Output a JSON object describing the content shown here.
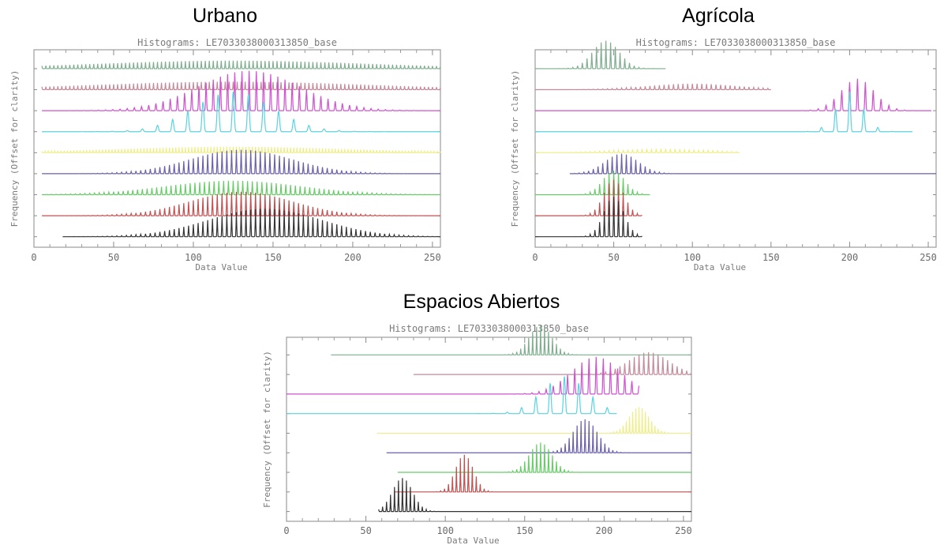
{
  "panels": [
    {
      "heading": "Urbano",
      "plot_title": "Histograms: LE7033038000313850_base",
      "xlabel": "Data Value",
      "ylabel": "Frequency (Offset for clarity)",
      "xticks": [
        "0",
        "50",
        "100",
        "150",
        "200",
        "250"
      ],
      "xlim": [
        0,
        255
      ]
    },
    {
      "heading": "Agrícola",
      "plot_title": "Histograms: LE7033038000313850_base",
      "xlabel": "Data Value",
      "ylabel": "Frequency (Offset for clarity)",
      "xticks": [
        "0",
        "50",
        "100",
        "150",
        "200",
        "250"
      ],
      "xlim": [
        0,
        255
      ]
    },
    {
      "heading": "Espacios Abiertos",
      "plot_title": "Histograms: LE7033038000313850_base",
      "xlabel": "Data Value",
      "ylabel": "Frequency (Offset for clarity)",
      "xticks": [
        "0",
        "50",
        "100",
        "150",
        "200",
        "250"
      ],
      "xlim": [
        0,
        255
      ]
    }
  ],
  "chart_data": [
    {
      "type": "line",
      "title": "Histograms: LE7033038000313850_base",
      "xlabel": "Data Value",
      "ylabel": "Frequency (Offset for clarity)",
      "xlim": [
        0,
        255
      ],
      "grid": false,
      "series": [
        {
          "color": "#7fae8f",
          "x_range": [
            5,
            255
          ],
          "peak_at": 125,
          "amplitude": 0.2,
          "spacing": 2.5,
          "spread": 120
        },
        {
          "color": "#c48a9a",
          "x_range": [
            5,
            255
          ],
          "peak_at": 125,
          "amplitude": 0.2,
          "spacing": 2.5,
          "spread": 120
        },
        {
          "color": "#cf52cf",
          "x_range": [
            5,
            255
          ],
          "peak_at": 135,
          "amplitude": 1.0,
          "spacing": 4.5,
          "spread": 45
        },
        {
          "color": "#5ad3e0",
          "x_range": [
            5,
            255
          ],
          "peak_at": 125,
          "amplitude": 1.0,
          "spacing": 9.5,
          "spread": 35
        },
        {
          "color": "#eeee88",
          "x_range": [
            5,
            255
          ],
          "peak_at": 125,
          "amplitude": 0.15,
          "spacing": 2.0,
          "spread": 100
        },
        {
          "color": "#6a60aa",
          "x_range": [
            5,
            255
          ],
          "peak_at": 130,
          "amplitude": 0.6,
          "spacing": 3.0,
          "spread": 45
        },
        {
          "color": "#66cc66",
          "x_range": [
            5,
            255
          ],
          "peak_at": 125,
          "amplitude": 0.35,
          "spacing": 3.0,
          "spread": 60
        },
        {
          "color": "#c05050",
          "x_range": [
            5,
            255
          ],
          "peak_at": 130,
          "amplitude": 0.6,
          "spacing": 3.0,
          "spread": 45
        },
        {
          "color": "#333333",
          "x_range": [
            18,
            255
          ],
          "peak_at": 145,
          "amplitude": 0.7,
          "spacing": 3.0,
          "spread": 50
        }
      ]
    },
    {
      "type": "line",
      "title": "Histograms: LE7033038000313850_base",
      "xlabel": "Data Value",
      "ylabel": "Frequency (Offset for clarity)",
      "xlim": [
        0,
        255
      ],
      "grid": false,
      "series": [
        {
          "color": "#7fae8f",
          "x_range": [
            0,
            83
          ],
          "peak_at": 45,
          "amplitude": 0.7,
          "spacing": 3.0,
          "spread": 12
        },
        {
          "color": "#c48a9a",
          "x_range": [
            0,
            150
          ],
          "peak_at": 100,
          "amplitude": 0.15,
          "spacing": 3.0,
          "spread": 40
        },
        {
          "color": "#cf52cf",
          "x_range": [
            0,
            252
          ],
          "peak_at": 205,
          "amplitude": 0.8,
          "spacing": 5.0,
          "spread": 15
        },
        {
          "color": "#5ad3e0",
          "x_range": [
            0,
            240
          ],
          "peak_at": 200,
          "amplitude": 1.0,
          "spacing": 9.0,
          "spread": 12
        },
        {
          "color": "#eeee88",
          "x_range": [
            0,
            130
          ],
          "peak_at": 80,
          "amplitude": 0.1,
          "spacing": 3.0,
          "spread": 40
        },
        {
          "color": "#6a60aa",
          "x_range": [
            22,
            255
          ],
          "peak_at": 55,
          "amplitude": 0.5,
          "spacing": 3.0,
          "spread": 15
        },
        {
          "color": "#66cc66",
          "x_range": [
            0,
            73
          ],
          "peak_at": 50,
          "amplitude": 0.6,
          "spacing": 3.0,
          "spread": 10
        },
        {
          "color": "#c05050",
          "x_range": [
            0,
            68
          ],
          "peak_at": 50,
          "amplitude": 0.9,
          "spacing": 3.0,
          "spread": 9
        },
        {
          "color": "#333333",
          "x_range": [
            0,
            68
          ],
          "peak_at": 50,
          "amplitude": 1.0,
          "spacing": 3.0,
          "spread": 9
        }
      ]
    },
    {
      "type": "line",
      "title": "Histograms: LE7033038000313850_base",
      "xlabel": "Data Value",
      "ylabel": "Frequency (Offset for clarity)",
      "xlim": [
        0,
        255
      ],
      "grid": false,
      "series": [
        {
          "color": "#7fae8f",
          "x_range": [
            28,
            255
          ],
          "peak_at": 160,
          "amplitude": 0.8,
          "spacing": 2.5,
          "spread": 10
        },
        {
          "color": "#c48a9a",
          "x_range": [
            80,
            255
          ],
          "peak_at": 228,
          "amplitude": 0.6,
          "spacing": 3.0,
          "spread": 18
        },
        {
          "color": "#cf52cf",
          "x_range": [
            0,
            222
          ],
          "peak_at": 195,
          "amplitude": 1.0,
          "spacing": 4.5,
          "spread": 22
        },
        {
          "color": "#5ad3e0",
          "x_range": [
            0,
            208
          ],
          "peak_at": 175,
          "amplitude": 1.0,
          "spacing": 9.0,
          "spread": 20
        },
        {
          "color": "#eeee88",
          "x_range": [
            57,
            255
          ],
          "peak_at": 222,
          "amplitude": 0.7,
          "spacing": 2.0,
          "spread": 9
        },
        {
          "color": "#6a60aa",
          "x_range": [
            63,
            255
          ],
          "peak_at": 188,
          "amplitude": 0.9,
          "spacing": 2.5,
          "spread": 11
        },
        {
          "color": "#66cc66",
          "x_range": [
            70,
            255
          ],
          "peak_at": 160,
          "amplitude": 0.8,
          "spacing": 2.5,
          "spread": 10
        },
        {
          "color": "#c05050",
          "x_range": [
            68,
            255
          ],
          "peak_at": 112,
          "amplitude": 1.0,
          "spacing": 2.5,
          "spread": 8
        },
        {
          "color": "#333333",
          "x_range": [
            58,
            255
          ],
          "peak_at": 73,
          "amplitude": 0.9,
          "spacing": 2.5,
          "spread": 9
        }
      ]
    }
  ]
}
